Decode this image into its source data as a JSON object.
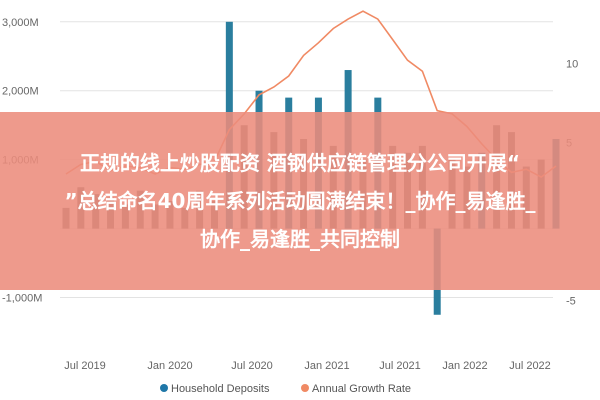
{
  "chart_data": {
    "type": "bar",
    "left_axis": {
      "ticks": [
        {
          "value": 3000,
          "label": "3,000M"
        },
        {
          "value": 2000,
          "label": "2,000M"
        },
        {
          "value": 1000,
          "label": "1,000M"
        },
        {
          "value": -1000,
          "label": "-1,000M"
        }
      ],
      "ylim": [
        -1500,
        3200
      ]
    },
    "right_axis": {
      "ticks": [
        {
          "value": 10,
          "label": "10"
        },
        {
          "value": 5,
          "label": "5"
        },
        {
          "value": -5,
          "label": "-5"
        }
      ],
      "ylim": [
        -7,
        13.5
      ]
    },
    "x_tick_labels": [
      "Jul 2019",
      "Jan 2020",
      "Jul 2020",
      "Jan 2021",
      "Jul 2021",
      "Jan 2022",
      "Jul 2022"
    ],
    "grid": true,
    "legend_position": "bottom",
    "series": [
      {
        "name": "Household Deposits",
        "axis": "left",
        "type": "bar",
        "color": "#1f77a8",
        "highlight_color": "#2a7e9e",
        "values": [
          300,
          600,
          500,
          450,
          350,
          550,
          350,
          400,
          300,
          550,
          400,
          3000,
          1500,
          2000,
          1400,
          1900,
          1300,
          1900,
          1200,
          2300,
          1000,
          1900,
          1200,
          1100,
          1200,
          -1250,
          1000,
          900,
          1100,
          1500,
          1400,
          900,
          1000,
          1300
        ],
        "highlight_indices": [
          11,
          13,
          15,
          17,
          19,
          21,
          25,
          28,
          33
        ]
      },
      {
        "name": "Annual Growth Rate",
        "axis": "right",
        "type": "line",
        "color": "#f08a64",
        "values": [
          3.0,
          3.6,
          3.8,
          3.2,
          3.5,
          3.4,
          3.0,
          3.4,
          3.3,
          3.6,
          3.8,
          5.8,
          6.8,
          8.0,
          8.5,
          9.2,
          10.5,
          11.3,
          12.2,
          12.8,
          13.3,
          12.8,
          11.5,
          10.2,
          9.5,
          7.0,
          6.8,
          6.0,
          4.9,
          3.9,
          3.1,
          3.3,
          2.8,
          3.5
        ]
      }
    ]
  },
  "banner": {
    "line1": "正规的线上炒股配资 酒钢供应链管理分公司开展“",
    "line2": "”总结命名40周年系列活动圆满结束！_协作_易逢胜_",
    "line3": "协作_易逢胜_共同控制"
  }
}
